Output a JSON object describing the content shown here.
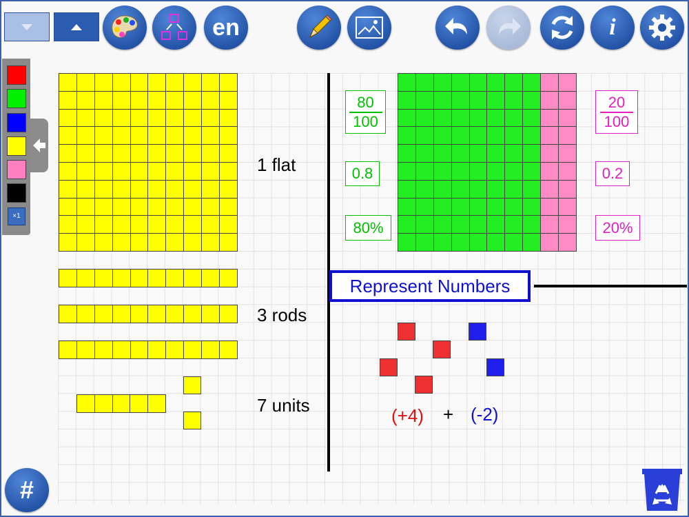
{
  "toolbar": {
    "lang": "en",
    "info": "i",
    "colors": {
      "accent": "#2555a8"
    }
  },
  "palette": {
    "swatches": [
      "#ff0000",
      "#00ee00",
      "#0000ff",
      "#ffff00",
      "#ff80c0",
      "#000000"
    ],
    "multiplier": "×1"
  },
  "left": {
    "flat_label": "1 flat",
    "rods_label": "3 rods",
    "units_label": "7 units"
  },
  "right": {
    "title": "Represent Numbers",
    "green": {
      "num": "80",
      "den": "100",
      "decimal": "0.8",
      "percent": "80%"
    },
    "pink": {
      "num": "20",
      "den": "100",
      "decimal": "0.2",
      "percent": "20%"
    },
    "expr_pos": "(+4)",
    "plus": "+",
    "expr_neg": "(-2)"
  },
  "footer": {
    "grid_button": "#"
  }
}
